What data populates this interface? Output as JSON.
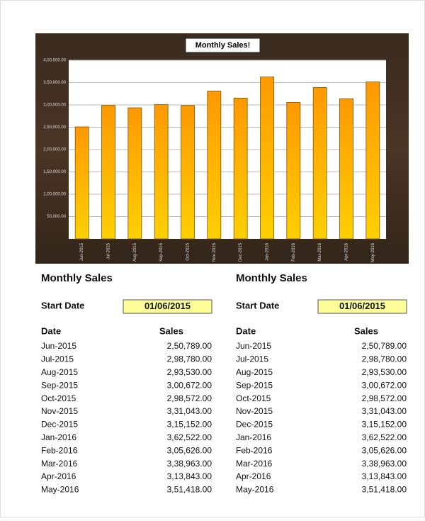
{
  "chart_data": {
    "type": "bar",
    "title": "Monthly Sales!",
    "categories": [
      "Jun-2015",
      "Jul-2015",
      "Aug-2015",
      "Sep-2015",
      "Oct-2015",
      "Nov-2015",
      "Dec-2015",
      "Jan-2016",
      "Feb-2016",
      "Mar-2016",
      "Apr-2016",
      "May-2016"
    ],
    "values": [
      250789,
      298780,
      293530,
      300672,
      298572,
      331043,
      315152,
      362522,
      305626,
      338963,
      313843,
      351418
    ],
    "color": "#ffa500",
    "grid": true,
    "ylim": [
      0,
      400000
    ],
    "yticks": [
      {
        "value": 50000,
        "label": "50,000.00"
      },
      {
        "value": 100000,
        "label": "1,00,000.00"
      },
      {
        "value": 150000,
        "label": "1,50,000.00"
      },
      {
        "value": 200000,
        "label": "2,00,000.00"
      },
      {
        "value": 250000,
        "label": "2,50,000.00"
      },
      {
        "value": 300000,
        "label": "3,00,000.00"
      },
      {
        "value": 350000,
        "label": "3,50,000.00"
      },
      {
        "value": 400000,
        "label": "4,00,000.00"
      }
    ]
  },
  "tables": [
    {
      "title": "Monthly Sales",
      "start_label": "Start Date",
      "start_date": "01/06/2015",
      "headers": [
        "Date",
        "Sales"
      ],
      "rows": [
        [
          "Jun-2015",
          "2,50,789.00"
        ],
        [
          "Jul-2015",
          "2,98,780.00"
        ],
        [
          "Aug-2015",
          "2,93,530.00"
        ],
        [
          "Sep-2015",
          "3,00,672.00"
        ],
        [
          "Oct-2015",
          "2,98,572.00"
        ],
        [
          "Nov-2015",
          "3,31,043.00"
        ],
        [
          "Dec-2015",
          "3,15,152.00"
        ],
        [
          "Jan-2016",
          "3,62,522.00"
        ],
        [
          "Feb-2016",
          "3,05,626.00"
        ],
        [
          "Mar-2016",
          "3,38,963.00"
        ],
        [
          "Apr-2016",
          "3,13,843.00"
        ],
        [
          "May-2016",
          "3,51,418.00"
        ]
      ]
    },
    {
      "title": "Monthly Sales",
      "start_label": "Start Date",
      "start_date": "01/06/2015",
      "headers": [
        "Date",
        "Sales"
      ],
      "rows": [
        [
          "Jun-2015",
          "2,50,789.00"
        ],
        [
          "Jul-2015",
          "2,98,780.00"
        ],
        [
          "Aug-2015",
          "2,93,530.00"
        ],
        [
          "Sep-2015",
          "3,00,672.00"
        ],
        [
          "Oct-2015",
          "2,98,572.00"
        ],
        [
          "Nov-2015",
          "3,31,043.00"
        ],
        [
          "Dec-2015",
          "3,15,152.00"
        ],
        [
          "Jan-2016",
          "3,62,522.00"
        ],
        [
          "Feb-2016",
          "3,05,626.00"
        ],
        [
          "Mar-2016",
          "3,38,963.00"
        ],
        [
          "Apr-2016",
          "3,13,843.00"
        ],
        [
          "May-2016",
          "3,51,418.00"
        ]
      ]
    }
  ]
}
